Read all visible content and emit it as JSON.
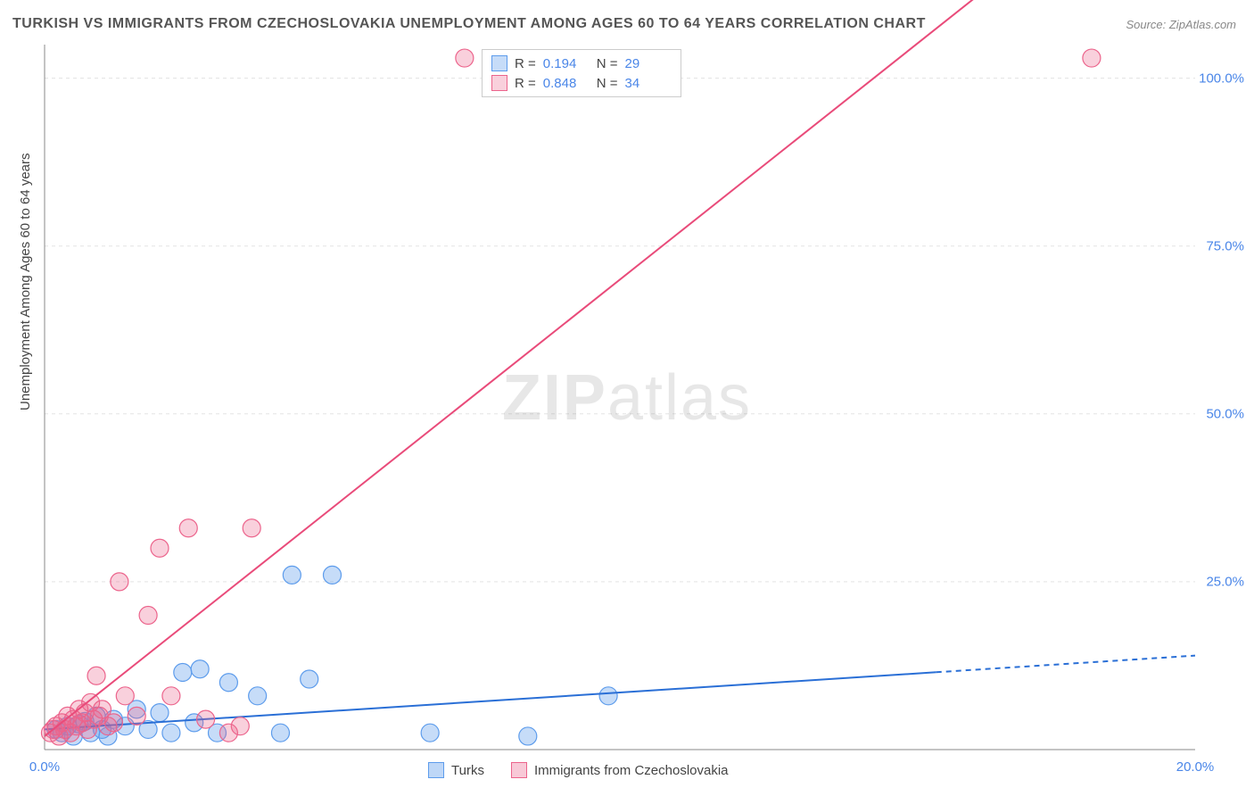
{
  "title": "TURKISH VS IMMIGRANTS FROM CZECHOSLOVAKIA UNEMPLOYMENT AMONG AGES 60 TO 64 YEARS CORRELATION CHART",
  "source": "Source: ZipAtlas.com",
  "ylabel": "Unemployment Among Ages 60 to 64 years",
  "watermark_a": "ZIP",
  "watermark_b": "atlas",
  "chart": {
    "type": "scatter",
    "xlim": [
      0,
      20
    ],
    "ylim": [
      0,
      105
    ],
    "xticks": [
      {
        "v": 0,
        "label": "0.0%"
      },
      {
        "v": 20,
        "label": "20.0%"
      }
    ],
    "yticks": [
      {
        "v": 25,
        "label": "25.0%"
      },
      {
        "v": 50,
        "label": "50.0%"
      },
      {
        "v": 75,
        "label": "75.0%"
      },
      {
        "v": 100,
        "label": "100.0%"
      }
    ],
    "grid_color": "#e3e3e3",
    "axis_color": "#888888",
    "background_color": "#ffffff",
    "label_color": "#4a86e8",
    "series": [
      {
        "name": "Turks",
        "fill": "rgba(93,156,236,0.35)",
        "stroke": "#5d9cec",
        "R": "0.194",
        "N": "29",
        "marker_r": 10,
        "line": {
          "slope": 0.55,
          "intercept": 3.0,
          "solid_xmax": 15.5,
          "color": "#2a6fd6",
          "width": 2
        },
        "points": [
          [
            0.2,
            3.0
          ],
          [
            0.3,
            2.5
          ],
          [
            0.4,
            3.5
          ],
          [
            0.5,
            2.0
          ],
          [
            0.6,
            3.8
          ],
          [
            0.7,
            4.2
          ],
          [
            0.8,
            2.5
          ],
          [
            0.9,
            5.0
          ],
          [
            1.0,
            3.0
          ],
          [
            1.1,
            2.0
          ],
          [
            1.2,
            4.5
          ],
          [
            1.4,
            3.5
          ],
          [
            1.6,
            6.0
          ],
          [
            1.8,
            3.0
          ],
          [
            2.0,
            5.5
          ],
          [
            2.2,
            2.5
          ],
          [
            2.4,
            11.5
          ],
          [
            2.6,
            4.0
          ],
          [
            2.7,
            12.0
          ],
          [
            3.0,
            2.5
          ],
          [
            3.2,
            10.0
          ],
          [
            3.7,
            8.0
          ],
          [
            4.1,
            2.5
          ],
          [
            4.3,
            26.0
          ],
          [
            4.6,
            10.5
          ],
          [
            5.0,
            26.0
          ],
          [
            6.7,
            2.5
          ],
          [
            8.4,
            2.0
          ],
          [
            9.8,
            8.0
          ]
        ]
      },
      {
        "name": "Immigrants from Czechoslovakia",
        "fill": "rgba(236,100,140,0.30)",
        "stroke": "#ec648c",
        "R": "0.848",
        "N": "34",
        "marker_r": 10,
        "line": {
          "slope": 6.8,
          "intercept": 2.0,
          "solid_xmax": 20,
          "color": "#e94b7a",
          "width": 2
        },
        "points": [
          [
            0.1,
            2.5
          ],
          [
            0.15,
            3.0
          ],
          [
            0.2,
            3.5
          ],
          [
            0.25,
            2.0
          ],
          [
            0.3,
            4.0
          ],
          [
            0.35,
            3.0
          ],
          [
            0.4,
            5.0
          ],
          [
            0.45,
            2.5
          ],
          [
            0.5,
            4.5
          ],
          [
            0.55,
            3.5
          ],
          [
            0.6,
            6.0
          ],
          [
            0.65,
            4.0
          ],
          [
            0.7,
            5.5
          ],
          [
            0.75,
            3.0
          ],
          [
            0.8,
            7.0
          ],
          [
            0.85,
            4.5
          ],
          [
            0.9,
            11.0
          ],
          [
            0.95,
            5.0
          ],
          [
            1.0,
            6.0
          ],
          [
            1.1,
            3.5
          ],
          [
            1.2,
            4.0
          ],
          [
            1.3,
            25.0
          ],
          [
            1.4,
            8.0
          ],
          [
            1.6,
            5.0
          ],
          [
            1.8,
            20.0
          ],
          [
            2.0,
            30.0
          ],
          [
            2.2,
            8.0
          ],
          [
            2.5,
            33.0
          ],
          [
            2.8,
            4.5
          ],
          [
            3.2,
            2.5
          ],
          [
            3.4,
            3.5
          ],
          [
            3.6,
            33.0
          ],
          [
            7.3,
            103.0
          ],
          [
            18.2,
            103.0
          ]
        ]
      }
    ]
  },
  "legend_bottom": {
    "items": [
      {
        "label": "Turks",
        "fill": "rgba(93,156,236,0.4)",
        "stroke": "#5d9cec"
      },
      {
        "label": "Immigrants from Czechoslovakia",
        "fill": "rgba(236,100,140,0.35)",
        "stroke": "#ec648c"
      }
    ]
  }
}
